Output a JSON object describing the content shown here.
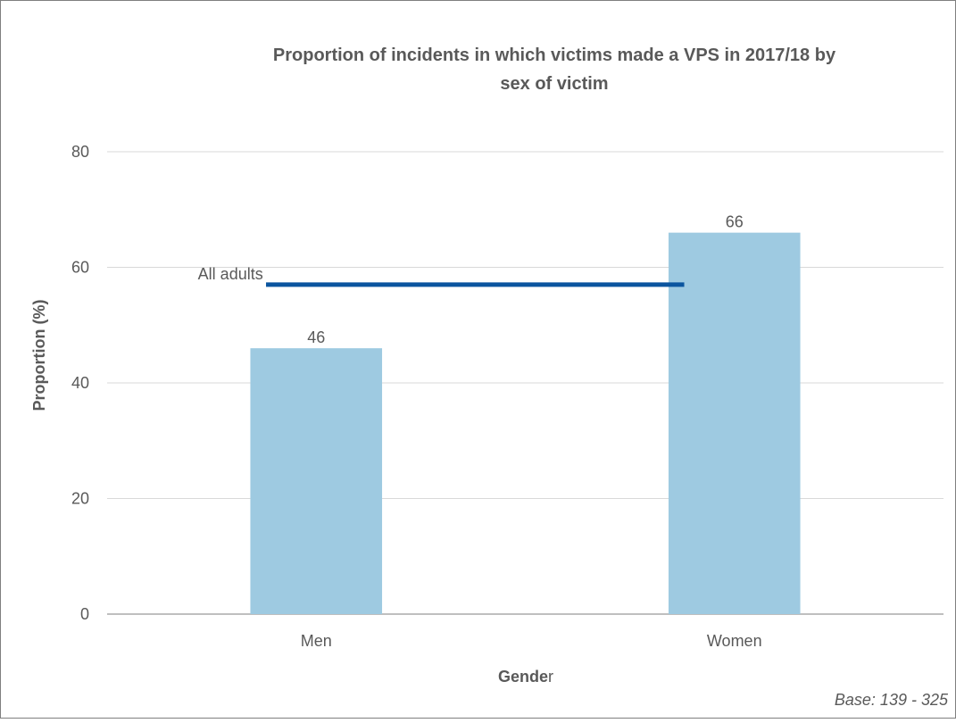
{
  "chart_data": {
    "type": "bar",
    "title": "Proportion of incidents in which victims made a VPS in 2017/18 by sex of victim",
    "title_lines": [
      "Proportion of incidents in which victims made a VPS in 2017/18 by",
      "sex of victim"
    ],
    "xlabel_bold": "Gende",
    "xlabel_rest": "r",
    "ylabel": "Proportion (%)",
    "categories": [
      "Men",
      "Women"
    ],
    "values": [
      46,
      66
    ],
    "data_labels": [
      "46",
      "66"
    ],
    "ylim": [
      0,
      80
    ],
    "yticks": [
      0,
      20,
      40,
      60,
      80
    ],
    "ytick_labels": [
      "0",
      "20",
      "40",
      "60",
      "80"
    ],
    "grid": true,
    "reference_line": {
      "label": "All adults",
      "value": 57
    },
    "footnote": "Base: 139 - 325",
    "colors": {
      "bar": "#9ECAE1",
      "reference_line": "#0B559F",
      "grid": "#D9D9D9",
      "axis": "#7F7F7F",
      "text": "#595959",
      "border": "#7F7F7F"
    }
  }
}
